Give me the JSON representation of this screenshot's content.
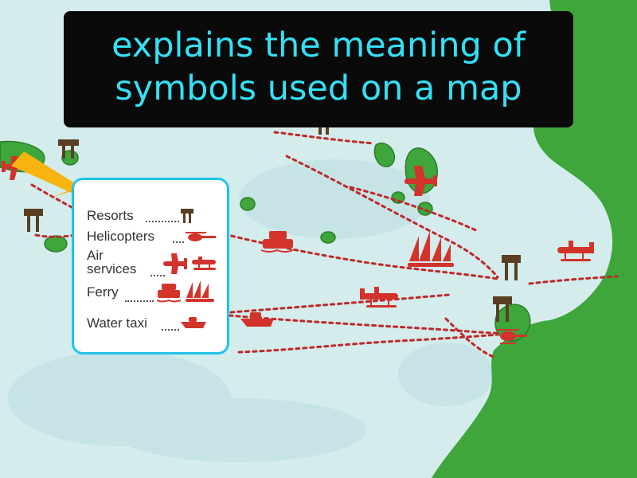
{
  "caption": {
    "line1": "explains the meaning of",
    "line2": "symbols used on a map"
  },
  "legend": {
    "resorts": "Resorts",
    "helicopters": "Helicopters",
    "air_line1": "Air",
    "air_line2": "services",
    "ferry": "Ferry",
    "water_taxi": "Water taxi"
  },
  "colors": {
    "sea": "#d5ecec",
    "land": "#3ea63a",
    "route": "#c0282a",
    "caption_text": "#35e0f5",
    "legend_border": "#21c3e8",
    "arrow": "#f7b310"
  },
  "icons": [
    "resort-hut-icon",
    "helicopter-icon",
    "airplane-icon",
    "seaplane-icon",
    "ferry-icon",
    "sailboat-icon",
    "speedboat-icon",
    "pointer-arrow-icon"
  ]
}
